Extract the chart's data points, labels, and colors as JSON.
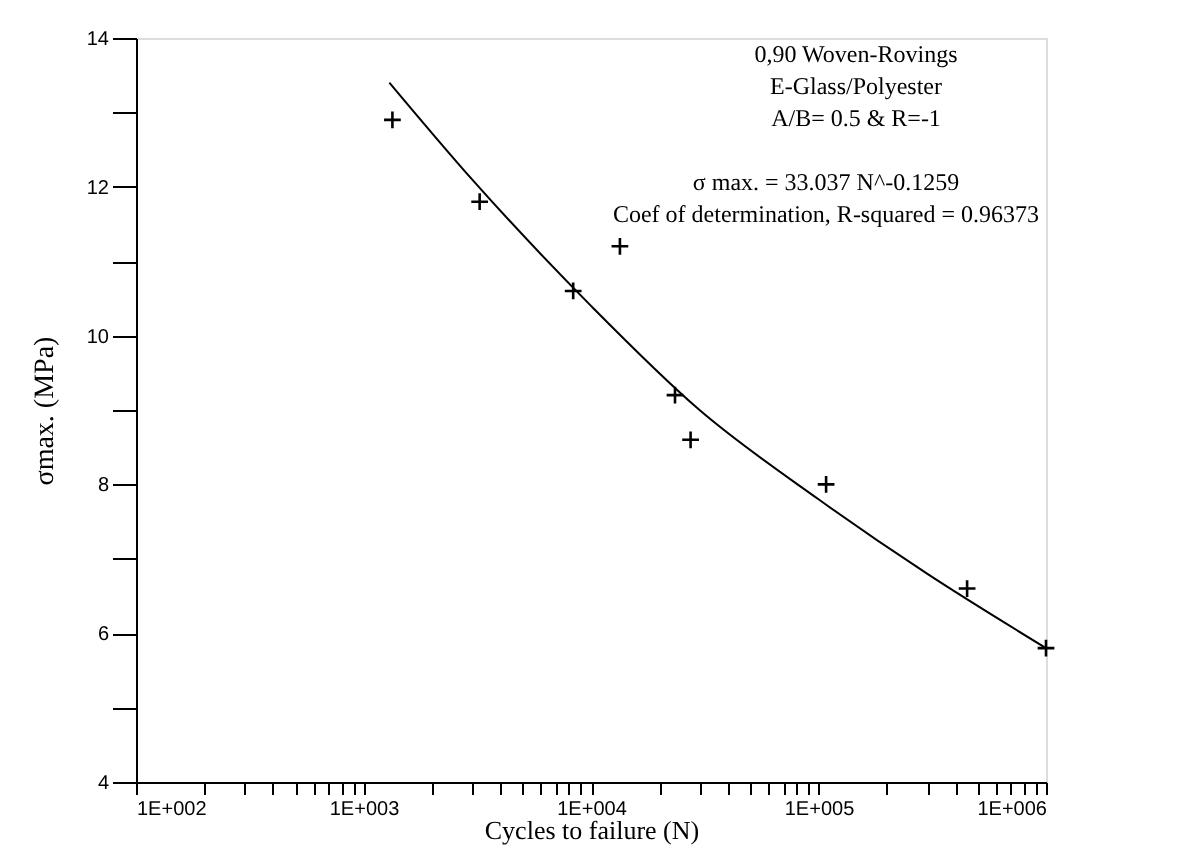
{
  "chart_data": {
    "type": "scatter",
    "xlabel": "Cycles to failure (N)",
    "ylabel": "σmax. (MPa)",
    "log": "x",
    "marker": "cross",
    "grid": false,
    "xlim": [
      100,
      1000000
    ],
    "ylim": [
      4,
      14
    ],
    "xticks": [
      {
        "value": 100,
        "label": "1E+002"
      },
      {
        "value": 200,
        "label": null
      },
      {
        "value": 300,
        "label": null
      },
      {
        "value": 400,
        "label": null
      },
      {
        "value": 500,
        "label": null
      },
      {
        "value": 600,
        "label": null
      },
      {
        "value": 700,
        "label": null
      },
      {
        "value": 800,
        "label": null
      },
      {
        "value": 900,
        "label": null
      },
      {
        "value": 1000,
        "label": "1E+003"
      },
      {
        "value": 2000,
        "label": null
      },
      {
        "value": 3000,
        "label": null
      },
      {
        "value": 4000,
        "label": null
      },
      {
        "value": 5000,
        "label": null
      },
      {
        "value": 6000,
        "label": null
      },
      {
        "value": 7000,
        "label": null
      },
      {
        "value": 8000,
        "label": null
      },
      {
        "value": 9000,
        "label": null
      },
      {
        "value": 10000,
        "label": "1E+004"
      },
      {
        "value": 20000,
        "label": null
      },
      {
        "value": 30000,
        "label": null
      },
      {
        "value": 40000,
        "label": null
      },
      {
        "value": 50000,
        "label": null
      },
      {
        "value": 60000,
        "label": null
      },
      {
        "value": 70000,
        "label": null
      },
      {
        "value": 80000,
        "label": null
      },
      {
        "value": 90000,
        "label": null
      },
      {
        "value": 100000,
        "label": "1E+005"
      },
      {
        "value": 200000,
        "label": null
      },
      {
        "value": 300000,
        "label": null
      },
      {
        "value": 400000,
        "label": null
      },
      {
        "value": 500000,
        "label": null
      },
      {
        "value": 600000,
        "label": null
      },
      {
        "value": 700000,
        "label": null
      },
      {
        "value": 800000,
        "label": null
      },
      {
        "value": 900000,
        "label": null
      },
      {
        "value": 1000000,
        "label": "1E+006"
      }
    ],
    "yticks": [
      4,
      {
        "value": 5,
        "label": null
      },
      6,
      {
        "value": 7,
        "label": null
      },
      8,
      {
        "value": 9,
        "label": null
      },
      10,
      {
        "value": 11,
        "label": null
      },
      12,
      {
        "value": 13,
        "label": null
      },
      14
    ],
    "series": [
      {
        "color": "#000000",
        "x": [
          1340,
          3240,
          8350,
          13400,
          23400,
          27400,
          108000,
          450000,
          1000000
        ],
        "values": [
          12.9,
          11.8,
          10.6,
          11.2,
          9.2,
          8.6,
          8.0,
          6.6,
          5.8
        ]
      },
      {
        "type": "line",
        "color": "#000000",
        "marker": "none",
        "line_style": "solid",
        "x": [
          1300,
          3000,
          10000,
          30000,
          100000,
          300000,
          1000000
        ],
        "values": [
          13.4,
          12.1,
          10.4,
          9.0,
          7.8,
          6.8,
          5.8
        ]
      }
    ],
    "annotations": [
      "0,90 Woven-Rovings",
      "E-Glass/Polyester",
      "A/B= 0.5  & R=-1",
      "σ max. = 33.037 N^-0.1259",
      "Coef of determination, R-squared = 0.96373"
    ]
  }
}
